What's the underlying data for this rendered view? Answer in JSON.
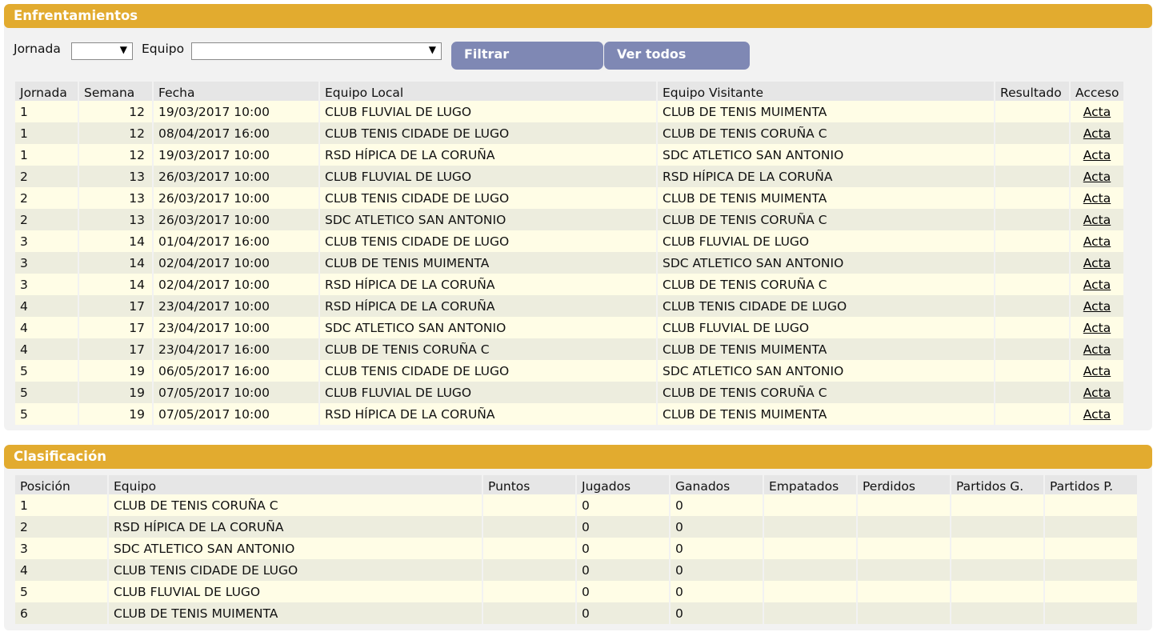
{
  "matches_panel": {
    "title": "Enfrentamientos",
    "filters": {
      "jornada_label": "Jornada",
      "equipo_label": "Equipo",
      "jornada_value": "",
      "equipo_value": "",
      "filter_button": "Filtrar",
      "show_all_button": "Ver todos"
    },
    "columns": [
      "Jornada",
      "Semana",
      "Fecha",
      "Equipo Local",
      "Equipo Visitante",
      "Resultado",
      "Acceso"
    ],
    "rows": [
      {
        "jornada": "1",
        "semana": "12",
        "fecha": "19/03/2017 10:00",
        "local": "CLUB FLUVIAL DE LUGO",
        "visitante": "CLUB DE TENIS MUIMENTA",
        "resultado": "",
        "acceso": "Acta"
      },
      {
        "jornada": "1",
        "semana": "12",
        "fecha": "08/04/2017 16:00",
        "local": "CLUB TENIS CIDADE DE LUGO",
        "visitante": "CLUB DE TENIS CORUÑA C",
        "resultado": "",
        "acceso": "Acta"
      },
      {
        "jornada": "1",
        "semana": "12",
        "fecha": "19/03/2017 10:00",
        "local": "RSD HÍPICA DE LA CORUÑA",
        "visitante": "SDC ATLETICO SAN ANTONIO",
        "resultado": "",
        "acceso": "Acta"
      },
      {
        "jornada": "2",
        "semana": "13",
        "fecha": "26/03/2017 10:00",
        "local": "CLUB FLUVIAL DE LUGO",
        "visitante": "RSD HÍPICA DE LA CORUÑA",
        "resultado": "",
        "acceso": "Acta"
      },
      {
        "jornada": "2",
        "semana": "13",
        "fecha": "26/03/2017 10:00",
        "local": "CLUB TENIS CIDADE DE LUGO",
        "visitante": "CLUB DE TENIS MUIMENTA",
        "resultado": "",
        "acceso": "Acta"
      },
      {
        "jornada": "2",
        "semana": "13",
        "fecha": "26/03/2017 10:00",
        "local": "SDC ATLETICO SAN ANTONIO",
        "visitante": "CLUB DE TENIS CORUÑA C",
        "resultado": "",
        "acceso": "Acta"
      },
      {
        "jornada": "3",
        "semana": "14",
        "fecha": "01/04/2017 16:00",
        "local": "CLUB TENIS CIDADE DE LUGO",
        "visitante": "CLUB FLUVIAL DE LUGO",
        "resultado": "",
        "acceso": "Acta"
      },
      {
        "jornada": "3",
        "semana": "14",
        "fecha": "02/04/2017 10:00",
        "local": "CLUB DE TENIS MUIMENTA",
        "visitante": "SDC ATLETICO SAN ANTONIO",
        "resultado": "",
        "acceso": "Acta"
      },
      {
        "jornada": "3",
        "semana": "14",
        "fecha": "02/04/2017 10:00",
        "local": "RSD HÍPICA DE LA CORUÑA",
        "visitante": "CLUB DE TENIS CORUÑA C",
        "resultado": "",
        "acceso": "Acta"
      },
      {
        "jornada": "4",
        "semana": "17",
        "fecha": "23/04/2017 10:00",
        "local": "RSD HÍPICA DE LA CORUÑA",
        "visitante": "CLUB TENIS CIDADE DE LUGO",
        "resultado": "",
        "acceso": "Acta"
      },
      {
        "jornada": "4",
        "semana": "17",
        "fecha": "23/04/2017 10:00",
        "local": "SDC ATLETICO SAN ANTONIO",
        "visitante": "CLUB FLUVIAL DE LUGO",
        "resultado": "",
        "acceso": "Acta"
      },
      {
        "jornada": "4",
        "semana": "17",
        "fecha": "23/04/2017 16:00",
        "local": "CLUB DE TENIS CORUÑA C",
        "visitante": "CLUB DE TENIS MUIMENTA",
        "resultado": "",
        "acceso": "Acta"
      },
      {
        "jornada": "5",
        "semana": "19",
        "fecha": "06/05/2017 16:00",
        "local": "CLUB TENIS CIDADE DE LUGO",
        "visitante": "SDC ATLETICO SAN ANTONIO",
        "resultado": "",
        "acceso": "Acta"
      },
      {
        "jornada": "5",
        "semana": "19",
        "fecha": "07/05/2017 10:00",
        "local": "CLUB FLUVIAL DE LUGO",
        "visitante": "CLUB DE TENIS CORUÑA C",
        "resultado": "",
        "acceso": "Acta"
      },
      {
        "jornada": "5",
        "semana": "19",
        "fecha": "07/05/2017 10:00",
        "local": "RSD HÍPICA DE LA CORUÑA",
        "visitante": "CLUB DE TENIS MUIMENTA",
        "resultado": "",
        "acceso": "Acta"
      }
    ]
  },
  "standings_panel": {
    "title": "Clasificación",
    "columns": [
      "Posición",
      "Equipo",
      "Puntos",
      "Jugados",
      "Ganados",
      "Empatados",
      "Perdidos",
      "Partidos G.",
      "Partidos P."
    ],
    "rows": [
      {
        "posicion": "1",
        "equipo": "CLUB DE TENIS CORUÑA C",
        "puntos": "",
        "jugados": "0",
        "ganados": "0",
        "empatados": "",
        "perdidos": "",
        "partidos_g": "",
        "partidos_p": ""
      },
      {
        "posicion": "2",
        "equipo": "RSD HÍPICA DE LA CORUÑA",
        "puntos": "",
        "jugados": "0",
        "ganados": "0",
        "empatados": "",
        "perdidos": "",
        "partidos_g": "",
        "partidos_p": ""
      },
      {
        "posicion": "3",
        "equipo": "SDC ATLETICO SAN ANTONIO",
        "puntos": "",
        "jugados": "0",
        "ganados": "0",
        "empatados": "",
        "perdidos": "",
        "partidos_g": "",
        "partidos_p": ""
      },
      {
        "posicion": "4",
        "equipo": "CLUB TENIS CIDADE DE LUGO",
        "puntos": "",
        "jugados": "0",
        "ganados": "0",
        "empatados": "",
        "perdidos": "",
        "partidos_g": "",
        "partidos_p": ""
      },
      {
        "posicion": "5",
        "equipo": "CLUB FLUVIAL DE LUGO",
        "puntos": "",
        "jugados": "0",
        "ganados": "0",
        "empatados": "",
        "perdidos": "",
        "partidos_g": "",
        "partidos_p": ""
      },
      {
        "posicion": "6",
        "equipo": "CLUB DE TENIS MUIMENTA",
        "puntos": "",
        "jugados": "0",
        "ganados": "0",
        "empatados": "",
        "perdidos": "",
        "partidos_g": "",
        "partidos_p": ""
      }
    ]
  },
  "colors": {
    "header_bar": "#e2ab2f",
    "button": "#7f88b4",
    "row_odd": "#fffde6",
    "row_even": "#ededde",
    "panel_bg": "#f2f2f2"
  }
}
